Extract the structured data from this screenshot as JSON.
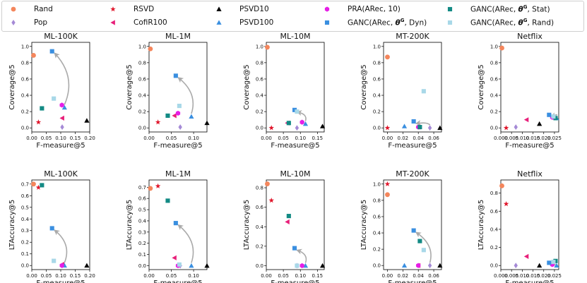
{
  "legend": [
    {
      "id": "Rand",
      "label": "Rand",
      "marker": "circle",
      "color": "#f4865c"
    },
    {
      "id": "Pop",
      "label": "Pop",
      "marker": "diamond",
      "color": "#a58ad6"
    },
    {
      "id": "RSVD",
      "label": "RSVD",
      "marker": "star",
      "color": "#e0162b"
    },
    {
      "id": "CofiR100",
      "label": "CofiR100",
      "marker": "triangle-left",
      "color": "#e8207a"
    },
    {
      "id": "PSVD10",
      "label": "PSVD10",
      "marker": "triangle-up",
      "color": "#000000"
    },
    {
      "id": "PSVD100",
      "label": "PSVD100",
      "marker": "triangle-up",
      "color": "#3a8fe0"
    },
    {
      "id": "PRA",
      "label": "PRA(ARec, 10)",
      "marker": "hexagon",
      "color": "#e61ee6"
    },
    {
      "id": "GANC_Dyn",
      "label": "GANC(ARec, θG, Dyn)",
      "marker": "square",
      "color": "#3a8fe0"
    },
    {
      "id": "GANC_Stat",
      "label": "GANC(ARec, θG, Stat)",
      "marker": "square",
      "color": "#138a84"
    },
    {
      "id": "GANC_Rand",
      "label": "GANC(ARec, θG, Rand)",
      "marker": "square",
      "color": "#a8d8e8"
    }
  ],
  "chart_data": [
    {
      "type": "scatter",
      "title": "ML-100K",
      "xlabel": "F-measure@5",
      "ylabel": "Coverage@5",
      "xlim": [
        0,
        0.2
      ],
      "ylim": [
        -0.05,
        1.05
      ],
      "xticks": [
        "0.00",
        "0.05",
        "0.10",
        "0.15",
        "0.20"
      ],
      "xtick_vals": [
        0,
        0.05,
        0.1,
        0.15,
        0.2
      ],
      "yticks": [
        "0.0",
        "0.2",
        "0.4",
        "0.6",
        "0.8",
        "1.0"
      ],
      "ytick_vals": [
        0,
        0.2,
        0.4,
        0.6,
        0.8,
        1.0
      ],
      "points": [
        {
          "series": "Rand",
          "x": 0.006,
          "y": 0.89
        },
        {
          "series": "Pop",
          "x": 0.105,
          "y": 0.01
        },
        {
          "series": "RSVD",
          "x": 0.023,
          "y": 0.07
        },
        {
          "series": "CofiR100",
          "x": 0.105,
          "y": 0.12
        },
        {
          "series": "PSVD10",
          "x": 0.19,
          "y": 0.09
        },
        {
          "series": "PSVD100",
          "x": 0.113,
          "y": 0.25
        },
        {
          "series": "PRA",
          "x": 0.104,
          "y": 0.28
        },
        {
          "series": "GANC_Dyn",
          "x": 0.07,
          "y": 0.94
        },
        {
          "series": "GANC_Stat",
          "x": 0.035,
          "y": 0.24
        },
        {
          "series": "GANC_Rand",
          "x": 0.076,
          "y": 0.36
        }
      ],
      "arrow": {
        "from": [
          0.113,
          0.25
        ],
        "to": [
          0.07,
          0.94
        ]
      }
    },
    {
      "type": "scatter",
      "title": "ML-1M",
      "xlabel": "F-measure@5",
      "ylabel": "Coverage@5",
      "xlim": [
        0,
        0.13
      ],
      "ylim": [
        -0.05,
        1.05
      ],
      "xticks": [
        "0.00",
        "0.05",
        "0.10"
      ],
      "xtick_vals": [
        0,
        0.05,
        0.1
      ],
      "yticks": [
        "0.0",
        "0.2",
        "0.4",
        "0.6",
        "0.8",
        "1.0"
      ],
      "ytick_vals": [
        0,
        0.2,
        0.4,
        0.6,
        0.8,
        1.0
      ],
      "points": [
        {
          "series": "Rand",
          "x": 0.003,
          "y": 0.97
        },
        {
          "series": "Pop",
          "x": 0.07,
          "y": 0.01
        },
        {
          "series": "RSVD",
          "x": 0.02,
          "y": 0.07
        },
        {
          "series": "CofiR100",
          "x": 0.057,
          "y": 0.15
        },
        {
          "series": "PSVD10",
          "x": 0.13,
          "y": 0.06
        },
        {
          "series": "PSVD100",
          "x": 0.095,
          "y": 0.14
        },
        {
          "series": "PRA",
          "x": 0.065,
          "y": 0.18
        },
        {
          "series": "GANC_Dyn",
          "x": 0.06,
          "y": 0.64
        },
        {
          "series": "GANC_Stat",
          "x": 0.042,
          "y": 0.15
        },
        {
          "series": "GANC_Rand",
          "x": 0.068,
          "y": 0.27
        }
      ],
      "arrow": {
        "from": [
          0.095,
          0.14
        ],
        "to": [
          0.06,
          0.64
        ]
      }
    },
    {
      "type": "scatter",
      "title": "ML-10M",
      "xlabel": "F-measure@5",
      "ylabel": "Coverage@5",
      "xlim": [
        0,
        0.17
      ],
      "ylim": [
        -0.05,
        1.05
      ],
      "xticks": [
        "0.00",
        "0.05",
        "0.10",
        "0.15"
      ],
      "xtick_vals": [
        0,
        0.05,
        0.1,
        0.15
      ],
      "yticks": [
        "0.0",
        "0.2",
        "0.4",
        "0.6",
        "0.8",
        "1.0"
      ],
      "ytick_vals": [
        0,
        0.2,
        0.4,
        0.6,
        0.8,
        1.0
      ],
      "points": [
        {
          "series": "Rand",
          "x": 0.003,
          "y": 0.99
        },
        {
          "series": "Pop",
          "x": 0.09,
          "y": 0.0
        },
        {
          "series": "RSVD",
          "x": 0.015,
          "y": 0.0
        },
        {
          "series": "CofiR100",
          "x": 0.062,
          "y": 0.06
        },
        {
          "series": "PSVD10",
          "x": 0.165,
          "y": 0.02
        },
        {
          "series": "PSVD100",
          "x": 0.115,
          "y": 0.05
        },
        {
          "series": "PRA",
          "x": 0.105,
          "y": 0.07
        },
        {
          "series": "GANC_Dyn",
          "x": 0.083,
          "y": 0.22
        },
        {
          "series": "GANC_Stat",
          "x": 0.066,
          "y": 0.06
        },
        {
          "series": "GANC_Rand",
          "x": 0.09,
          "y": 0.2
        }
      ],
      "arrow": {
        "from": [
          0.115,
          0.05
        ],
        "to": [
          0.083,
          0.22
        ]
      }
    },
    {
      "type": "scatter",
      "title": "MT-200K",
      "xlabel": "F-measure@5",
      "ylabel": "Coverage@5",
      "xlim": [
        -0.005,
        0.07
      ],
      "ylim": [
        -0.05,
        1.05
      ],
      "xticks": [
        "0.00",
        "0.02",
        "0.04",
        "0.06"
      ],
      "xtick_vals": [
        0,
        0.02,
        0.04,
        0.06
      ],
      "yticks": [
        "0.0",
        "0.2",
        "0.4",
        "0.6",
        "0.8",
        "1.0"
      ],
      "ytick_vals": [
        0,
        0.2,
        0.4,
        0.6,
        0.8,
        1.0
      ],
      "points": [
        {
          "series": "Rand",
          "x": 0.0,
          "y": 0.87
        },
        {
          "series": "Pop",
          "x": 0.055,
          "y": 0.0
        },
        {
          "series": "RSVD",
          "x": 0.0,
          "y": 0.0
        },
        {
          "series": "CofiR100",
          "x": 0.04,
          "y": 0.01
        },
        {
          "series": "PSVD10",
          "x": 0.068,
          "y": 0.0
        },
        {
          "series": "PSVD100",
          "x": 0.022,
          "y": 0.02
        },
        {
          "series": "PRA",
          "x": 0.04,
          "y": 0.01
        },
        {
          "series": "GANC_Dyn",
          "x": 0.034,
          "y": 0.08
        },
        {
          "series": "GANC_Stat",
          "x": 0.042,
          "y": 0.01
        },
        {
          "series": "GANC_Rand",
          "x": 0.047,
          "y": 0.45
        }
      ],
      "arrow": {
        "from": [
          0.055,
          0.0
        ],
        "to": [
          0.034,
          0.08
        ]
      }
    },
    {
      "type": "scatter",
      "title": "Netflix",
      "xlabel": "F-measure@5",
      "ylabel": "Coverage@5",
      "xlim": [
        0,
        0.027
      ],
      "ylim": [
        -0.05,
        1.05
      ],
      "xticks": [
        "0.000",
        "0.005",
        "0.010",
        "0.015",
        "0.020",
        "0.025"
      ],
      "xtick_vals": [
        0,
        0.005,
        0.01,
        0.015,
        0.02,
        0.025
      ],
      "yticks": [
        "0.0",
        "0.2",
        "0.4",
        "0.6",
        "0.8",
        "1.0"
      ],
      "ytick_vals": [
        0,
        0.2,
        0.4,
        0.6,
        0.8,
        1.0
      ],
      "points": [
        {
          "series": "Rand",
          "x": 0.0005,
          "y": 0.98
        },
        {
          "series": "Pop",
          "x": 0.007,
          "y": 0.01
        },
        {
          "series": "RSVD",
          "x": 0.0025,
          "y": 0.0
        },
        {
          "series": "CofiR100",
          "x": 0.012,
          "y": 0.1
        },
        {
          "series": "PSVD10",
          "x": 0.018,
          "y": 0.05
        },
        {
          "series": "PSVD100",
          "x": 0.026,
          "y": 0.12
        },
        {
          "series": "PRA",
          "x": 0.024,
          "y": 0.13
        },
        {
          "series": "GANC_Dyn",
          "x": 0.0225,
          "y": 0.16
        },
        {
          "series": "GANC_Stat",
          "x": 0.0255,
          "y": 0.12
        },
        {
          "series": "GANC_Rand",
          "x": 0.0245,
          "y": 0.14
        }
      ],
      "arrow": {
        "from": [
          0.026,
          0.12
        ],
        "to": [
          0.0225,
          0.16
        ]
      }
    },
    {
      "type": "scatter",
      "title": "ML-100K",
      "xlabel": "F-measure@5",
      "ylabel": "LTAccuracy@5",
      "xlim": [
        0,
        0.2
      ],
      "ylim": [
        -0.035,
        0.735
      ],
      "xticks": [
        "0.00",
        "0.05",
        "0.10",
        "0.15",
        "0.20"
      ],
      "xtick_vals": [
        0,
        0.05,
        0.1,
        0.15,
        0.2
      ],
      "yticks": [
        "0.0",
        "0.1",
        "0.2",
        "0.3",
        "0.4",
        "0.5",
        "0.6",
        "0.7"
      ],
      "ytick_vals": [
        0,
        0.1,
        0.2,
        0.3,
        0.4,
        0.5,
        0.6,
        0.7
      ],
      "points": [
        {
          "series": "Rand",
          "x": 0.006,
          "y": 0.7
        },
        {
          "series": "Pop",
          "x": 0.105,
          "y": 0.0
        },
        {
          "series": "RSVD",
          "x": 0.023,
          "y": 0.67
        },
        {
          "series": "CofiR100",
          "x": 0.105,
          "y": 0.01
        },
        {
          "series": "PSVD10",
          "x": 0.19,
          "y": 0.0
        },
        {
          "series": "PSVD100",
          "x": 0.113,
          "y": 0.0
        },
        {
          "series": "PRA",
          "x": 0.104,
          "y": 0.0
        },
        {
          "series": "GANC_Dyn",
          "x": 0.07,
          "y": 0.32
        },
        {
          "series": "GANC_Stat",
          "x": 0.035,
          "y": 0.69
        },
        {
          "series": "GANC_Rand",
          "x": 0.076,
          "y": 0.04
        }
      ],
      "arrow": {
        "from": [
          0.113,
          0.0
        ],
        "to": [
          0.07,
          0.32
        ]
      }
    },
    {
      "type": "scatter",
      "title": "ML-1M",
      "xlabel": "F-measure@5",
      "ylabel": "LTAccuracy@5",
      "xlim": [
        0,
        0.13
      ],
      "ylim": [
        -0.035,
        0.765
      ],
      "xticks": [
        "0.00",
        "0.05",
        "0.10"
      ],
      "xtick_vals": [
        0,
        0.05,
        0.1
      ],
      "yticks": [
        "0.0",
        "0.1",
        "0.2",
        "0.3",
        "0.4",
        "0.5",
        "0.6",
        "0.7"
      ],
      "ytick_vals": [
        0,
        0.1,
        0.2,
        0.3,
        0.4,
        0.5,
        0.6,
        0.7
      ],
      "points": [
        {
          "series": "Rand",
          "x": 0.003,
          "y": 0.69
        },
        {
          "series": "Pop",
          "x": 0.07,
          "y": 0.0
        },
        {
          "series": "RSVD",
          "x": 0.02,
          "y": 0.71
        },
        {
          "series": "CofiR100",
          "x": 0.057,
          "y": 0.07
        },
        {
          "series": "PSVD10",
          "x": 0.13,
          "y": 0.0
        },
        {
          "series": "PSVD100",
          "x": 0.095,
          "y": 0.0
        },
        {
          "series": "PRA",
          "x": 0.065,
          "y": 0.0
        },
        {
          "series": "GANC_Dyn",
          "x": 0.06,
          "y": 0.38
        },
        {
          "series": "GANC_Stat",
          "x": 0.042,
          "y": 0.58
        },
        {
          "series": "GANC_Rand",
          "x": 0.068,
          "y": 0.01
        }
      ],
      "arrow": {
        "from": [
          0.095,
          0.0
        ],
        "to": [
          0.06,
          0.38
        ]
      }
    },
    {
      "type": "scatter",
      "title": "ML-10M",
      "xlabel": "F-measure@5",
      "ylabel": "LTAccuracy@5",
      "xlim": [
        0,
        0.17
      ],
      "ylim": [
        -0.04,
        0.88
      ],
      "xticks": [
        "0.00",
        "0.05",
        "0.10",
        "0.15"
      ],
      "xtick_vals": [
        0,
        0.05,
        0.1,
        0.15
      ],
      "yticks": [
        "0.0",
        "0.2",
        "0.4",
        "0.6",
        "0.8"
      ],
      "ytick_vals": [
        0,
        0.2,
        0.4,
        0.6,
        0.8
      ],
      "points": [
        {
          "series": "Rand",
          "x": 0.003,
          "y": 0.84
        },
        {
          "series": "Pop",
          "x": 0.09,
          "y": 0.0
        },
        {
          "series": "RSVD",
          "x": 0.015,
          "y": 0.67
        },
        {
          "series": "CofiR100",
          "x": 0.062,
          "y": 0.45
        },
        {
          "series": "PSVD10",
          "x": 0.165,
          "y": 0.0
        },
        {
          "series": "PSVD100",
          "x": 0.115,
          "y": 0.0
        },
        {
          "series": "PRA",
          "x": 0.105,
          "y": 0.0
        },
        {
          "series": "GANC_Dyn",
          "x": 0.083,
          "y": 0.18
        },
        {
          "series": "GANC_Stat",
          "x": 0.066,
          "y": 0.51
        },
        {
          "series": "GANC_Rand",
          "x": 0.09,
          "y": 0.0
        }
      ],
      "arrow": {
        "from": [
          0.115,
          0.0
        ],
        "to": [
          0.083,
          0.18
        ]
      }
    },
    {
      "type": "scatter",
      "title": "MT-200K",
      "xlabel": "F-measure@5",
      "ylabel": "LTAccuracy@5",
      "xlim": [
        -0.005,
        0.07
      ],
      "ylim": [
        -0.05,
        1.05
      ],
      "xticks": [
        "0.00",
        "0.02",
        "0.04",
        "0.06"
      ],
      "xtick_vals": [
        0,
        0.02,
        0.04,
        0.06
      ],
      "yticks": [
        "0.0",
        "0.2",
        "0.4",
        "0.6",
        "0.8",
        "1.0"
      ],
      "ytick_vals": [
        0,
        0.2,
        0.4,
        0.6,
        0.8,
        1.0
      ],
      "points": [
        {
          "series": "Rand",
          "x": 0.0,
          "y": 0.87
        },
        {
          "series": "Pop",
          "x": 0.055,
          "y": 0.0
        },
        {
          "series": "RSVD",
          "x": 0.0,
          "y": 1.0
        },
        {
          "series": "CofiR100",
          "x": 0.04,
          "y": 0.0
        },
        {
          "series": "PSVD10",
          "x": 0.068,
          "y": 0.0
        },
        {
          "series": "PSVD100",
          "x": 0.022,
          "y": 0.0
        },
        {
          "series": "PRA",
          "x": 0.04,
          "y": 0.0
        },
        {
          "series": "GANC_Dyn",
          "x": 0.034,
          "y": 0.43
        },
        {
          "series": "GANC_Stat",
          "x": 0.042,
          "y": 0.3
        },
        {
          "series": "GANC_Rand",
          "x": 0.047,
          "y": 0.19
        }
      ],
      "arrow": {
        "from": [
          0.055,
          0.0
        ],
        "to": [
          0.034,
          0.43
        ]
      }
    },
    {
      "type": "scatter",
      "title": "Netflix",
      "xlabel": "F-measure@5",
      "ylabel": "LTAccuracy@5",
      "xlim": [
        0,
        0.027
      ],
      "ylim": [
        -0.045,
        0.945
      ],
      "xticks": [
        "0.000",
        "0.005",
        "0.010",
        "0.015",
        "0.020",
        "0.025"
      ],
      "xtick_vals": [
        0,
        0.005,
        0.01,
        0.015,
        0.02,
        0.025
      ],
      "yticks": [
        "0.0",
        "0.2",
        "0.4",
        "0.6",
        "0.8"
      ],
      "ytick_vals": [
        0,
        0.2,
        0.4,
        0.6,
        0.8
      ],
      "points": [
        {
          "series": "Rand",
          "x": 0.0005,
          "y": 0.88
        },
        {
          "series": "Pop",
          "x": 0.007,
          "y": 0.0
        },
        {
          "series": "RSVD",
          "x": 0.0025,
          "y": 0.68
        },
        {
          "series": "CofiR100",
          "x": 0.012,
          "y": 0.1
        },
        {
          "series": "PSVD10",
          "x": 0.018,
          "y": 0.0
        },
        {
          "series": "PSVD100",
          "x": 0.026,
          "y": 0.0
        },
        {
          "series": "PRA",
          "x": 0.024,
          "y": 0.01
        },
        {
          "series": "GANC_Dyn",
          "x": 0.0225,
          "y": 0.03
        },
        {
          "series": "GANC_Stat",
          "x": 0.0255,
          "y": 0.05
        },
        {
          "series": "GANC_Rand",
          "x": 0.0245,
          "y": 0.04
        }
      ],
      "arrow": {
        "from": [
          0.026,
          0.0
        ],
        "to": [
          0.0225,
          0.03
        ]
      }
    }
  ]
}
